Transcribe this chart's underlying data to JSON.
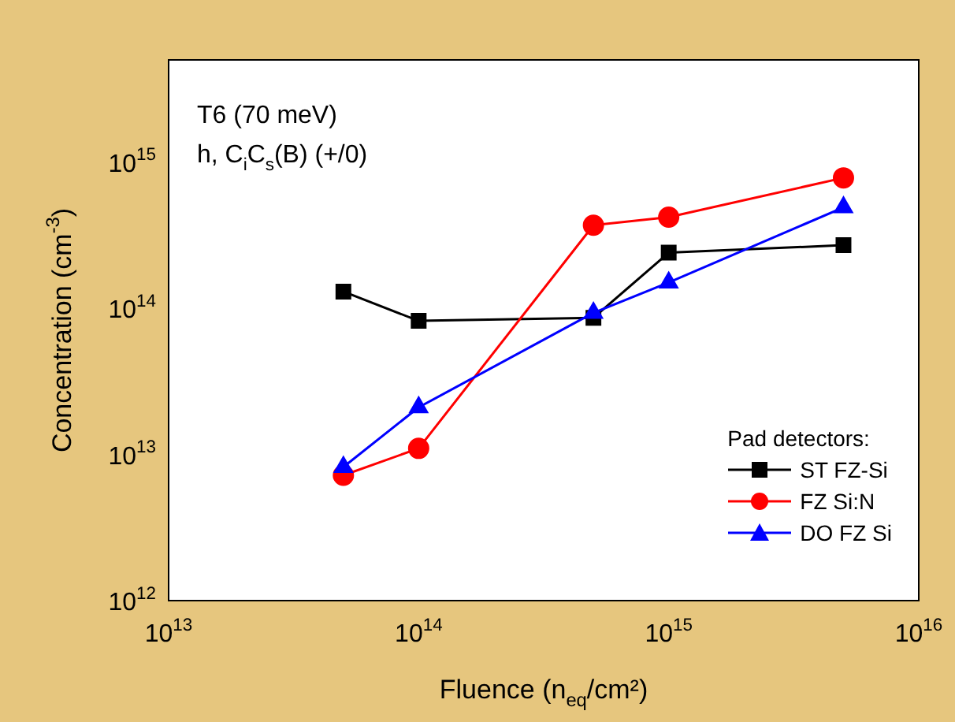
{
  "chart_data": {
    "type": "line",
    "xlabel": "Fluence (n$_{eq}$/cm²)",
    "ylabel": "Concentration (cm$^{-3}$)",
    "legend_title": "Pad detectors:",
    "legend": "bottom right",
    "log": "xy",
    "grid": false,
    "annotations": [
      "T6 (70 meV)",
      "h, C$_{i}$C$_{s}$(B) (+/0)"
    ],
    "x": [
      50000000000000.0,
      100000000000000.0,
      500000000000000.0,
      1000000000000000.0,
      5000000000000000.0
    ],
    "xlim": [
      10000000000000.0,
      1e+16
    ],
    "ylim": [
      1000000000000.0,
      5000000000000000.0
    ],
    "xticks": [
      {
        "value": 10000000000000.0,
        "label": "10$^{13}$"
      },
      {
        "value": 100000000000000.0,
        "label": "10$^{14}$"
      },
      {
        "value": 1000000000000000.0,
        "label": "10$^{15}$"
      },
      {
        "value": 1e+16,
        "label": "10$^{16}$"
      }
    ],
    "yticks": [
      {
        "value": 1000000000000.0,
        "label": "10$^{12}$"
      },
      {
        "value": 10000000000000.0,
        "label": "10$^{13}$"
      },
      {
        "value": 100000000000000.0,
        "label": "10$^{14}$"
      },
      {
        "value": 1000000000000000.0,
        "label": "10$^{15}$"
      }
    ],
    "series": [
      {
        "name": "ST FZ-Si",
        "color": "#000000",
        "marker": "square",
        "values": [
          130000000000000.0,
          82000000000000.0,
          86000000000000.0,
          240000000000000.0,
          270000000000000.0
        ]
      },
      {
        "name": "FZ Si:N",
        "color": "#ff0000",
        "marker": "circle",
        "values": [
          7200000000000.0,
          11000000000000.0,
          370000000000000.0,
          420000000000000.0,
          780000000000000.0
        ]
      },
      {
        "name": "DO FZ Si",
        "color": "#0000ff",
        "marker": "triangle",
        "values": [
          8200000000000.0,
          21000000000000.0,
          93000000000000.0,
          150000000000000.0,
          490000000000000.0
        ]
      }
    ]
  }
}
